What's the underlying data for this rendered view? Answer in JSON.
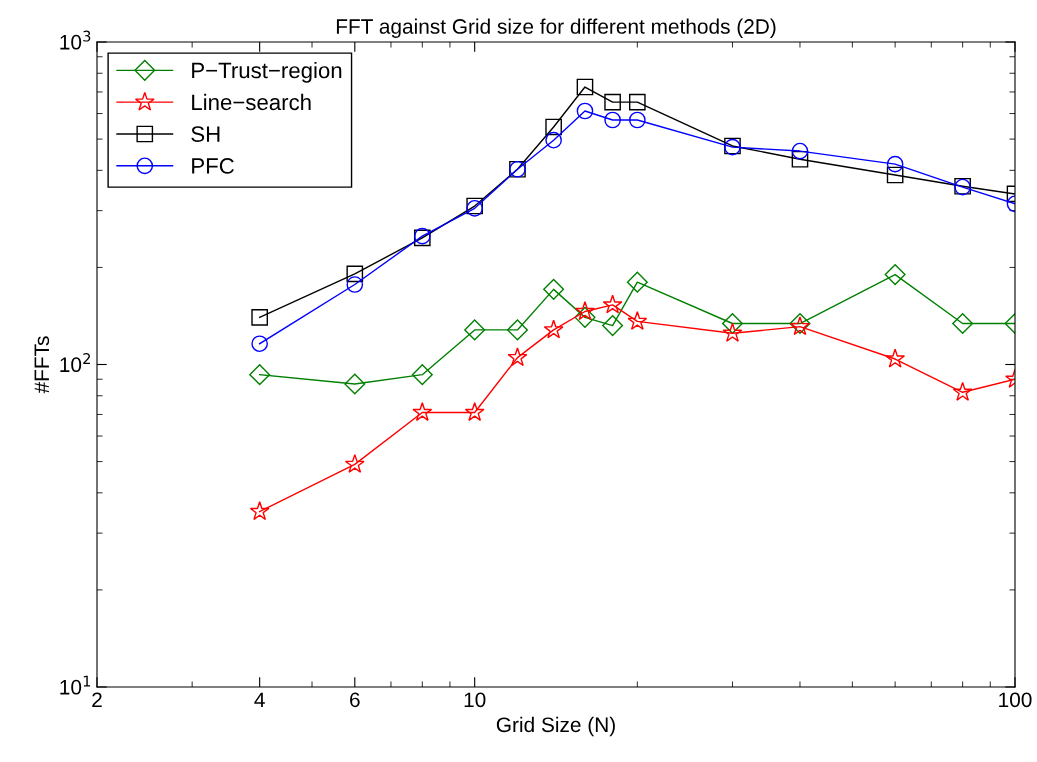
{
  "chart_data": {
    "type": "line",
    "title": "FFT against Grid size for different methods (2D)",
    "xlabel": "Grid Size (N)",
    "ylabel": "#FFTs",
    "log": "xy",
    "x": [
      4,
      6,
      8,
      10,
      12,
      14,
      16,
      18,
      20,
      30,
      40,
      60,
      80,
      100
    ],
    "xlim": [
      2,
      100
    ],
    "xticks": [
      2,
      4,
      6,
      10,
      100
    ],
    "ylim": [
      10,
      1000
    ],
    "yticks": [
      {
        "value": 10,
        "label": "10$^{1}$"
      },
      {
        "value": 100,
        "label": "10$^{2}$"
      },
      {
        "value": 1000,
        "label": "10$^{3}$"
      }
    ],
    "grid": false,
    "legend": "top left",
    "line_style": "solid",
    "series": [
      {
        "name": "P−Trust−region",
        "color": "#008000",
        "marker": "diamond",
        "values": [
          93,
          87,
          93,
          128,
          128,
          171,
          140,
          132,
          180,
          134,
          134,
          190,
          134,
          134
        ]
      },
      {
        "name": "Line−search",
        "color": "#ff0000",
        "marker": "star",
        "values": [
          35,
          49,
          71,
          71,
          105,
          128,
          146,
          153,
          136,
          125,
          131,
          104,
          82,
          90
        ]
      },
      {
        "name": "SH",
        "color": "#000000",
        "marker": "square",
        "values": [
          140,
          191,
          247,
          310,
          403,
          545,
          725,
          651,
          651,
          476,
          433,
          387,
          357,
          338
        ]
      },
      {
        "name": "PFC",
        "color": "#0000ff",
        "marker": "circle",
        "values": [
          116,
          177,
          250,
          305,
          403,
          496,
          611,
          573,
          573,
          472,
          459,
          418,
          355,
          315
        ]
      }
    ]
  }
}
